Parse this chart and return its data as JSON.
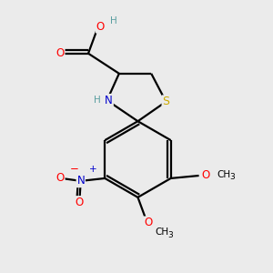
{
  "bg_color": "#ebebeb",
  "atom_colors": {
    "C": "#000000",
    "H": "#5a9ea0",
    "O": "#ff0000",
    "N_amine": "#0000cc",
    "N_nitro": "#0000cc",
    "S": "#ccaa00"
  },
  "bond_color": "#000000",
  "bond_width": 1.6,
  "figsize": [
    3.0,
    3.0
  ],
  "dpi": 100,
  "xlim": [
    0,
    10
  ],
  "ylim": [
    0,
    10
  ]
}
